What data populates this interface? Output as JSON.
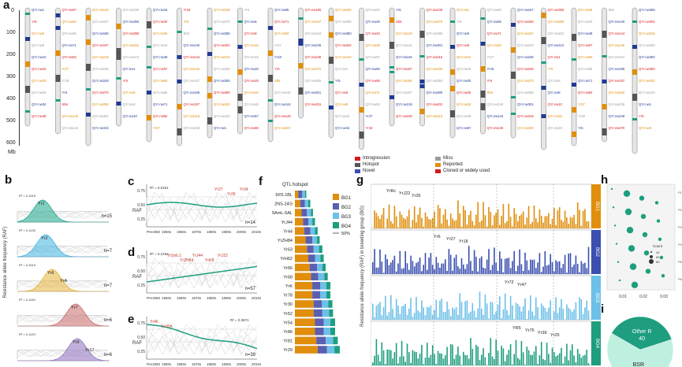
{
  "panel_labels": [
    "a",
    "b",
    "c",
    "d",
    "e",
    "f",
    "g",
    "h",
    "i"
  ],
  "panel_a": {
    "y_axis_ticks": [
      "0",
      "100",
      "200",
      "300",
      "400",
      "500",
      "600"
    ],
    "y_axis_unit": "Mb",
    "legend": [
      {
        "label": "Introgression",
        "color": "#d7191c"
      },
      {
        "label": "Hotspot",
        "color": "#555555"
      },
      {
        "label": "Novel",
        "color": "#3a4fb0"
      },
      {
        "label": "Miss",
        "color": "#9b9b9b"
      },
      {
        "label": "Reported",
        "color": "#e08e0b"
      },
      {
        "label": "Cloned or widely used",
        "color": "#d7191c"
      }
    ],
    "sample_labels": [
      "QYr.nw1",
      "Yr5",
      "QYr.nw6",
      "QYr.nw8",
      "QYr.nw10",
      "QYr.nw15",
      "QYr.nw20",
      "QYr.nw26",
      "QYr.nw34",
      "QYr.nw48",
      "QYr.nw57",
      "QYr.nw60",
      "QYr.nw65",
      "QYr.nw71",
      "QYr.nw82",
      "Yr27",
      "Yr18",
      "Yr6",
      "Sb6",
      "QYr.nw140",
      "QYr.nw144",
      "QYr.nw145",
      "QYr.nw157",
      "QYr.nw186",
      "QYr.nw197",
      "QYr.nw218",
      "QYr.nw236",
      "QYr.nw248",
      "QYr.nw270",
      "QYr.nw285",
      "QYr.nw301",
      "QYr.nw315",
      "QYr.nw330",
      "QYr.nw350",
      "QYr.nw380",
      "QYr.nw402",
      "QYr.nw410"
    ]
  },
  "panel_b": {
    "ylabel": "Resistance allele frequency (RAF)",
    "rows": [
      {
        "gene": "Yr1",
        "r2": "R² = 0.1615",
        "n": "n=15",
        "color": "#1aa58a"
      },
      {
        "gene": "Yr2",
        "r2": "R² = 0.1420",
        "n": "n=7",
        "color": "#3fb2e0"
      },
      {
        "gene": "Yr6",
        "r2": "R² = 0.2613",
        "n": "n=7",
        "color": "#e6b23a",
        "extra": "YrA"
      },
      {
        "gene": "Yr7",
        "r2": "R² = 0.1149",
        "n": "n=6",
        "color": "#c96a6a"
      },
      {
        "gene": "Yr9",
        "r2": "R² = 0.1129",
        "n": "n=6",
        "color": "#8f6fc0",
        "extra": "Yr17"
      }
    ]
  },
  "panel_c": {
    "ylabel": "RAF",
    "r2": "R² = 0.0151",
    "n": "n=14",
    "yticks": [
      "0.25",
      "0.50",
      "0.75"
    ],
    "xticks": [
      "Pre1950",
      "1950s",
      "1960s",
      "1970s",
      "1980s",
      "1990s",
      "2000s",
      "2010s"
    ],
    "genes": [
      "Yr27",
      "Yr26",
      "Yr34"
    ]
  },
  "panel_d": {
    "ylabel": "RAF",
    "r2": "R² = 0.2192",
    "n": "n=57",
    "yticks": [
      "0.25",
      "0.50",
      "0.75"
    ],
    "xticks": [
      "Pre1950",
      "1950s",
      "1960s",
      "1970s",
      "1980s",
      "1990s",
      "2000s",
      "2010s"
    ],
    "genes": [
      "YrSnb.1",
      "YrZH84",
      "YrJ44",
      "YrKB",
      "YrJ22"
    ]
  },
  "panel_e": {
    "ylabel": "RAF",
    "r2": "R² = 0.3671",
    "n": "n=39",
    "yticks": [
      "0.25",
      "0.50",
      "0.75"
    ],
    "xticks": [
      "Pre1950",
      "1950s",
      "1960s",
      "1970s",
      "1980s",
      "1990s",
      "2000s",
      "2010s"
    ],
    "genes": [
      "Yr46",
      "Yr1HA"
    ]
  },
  "chart_data": [
    {
      "type": "bar",
      "panel": "f",
      "title": "QTL hotspot",
      "categories": [
        "1RS.1BL",
        "2NS-2AS",
        "5AmL-5AL",
        "YrJ44",
        "Yr44",
        "YrZH84",
        "Yr63",
        "YrH62",
        "Yr66",
        "Yr68",
        "YrK",
        "Yr78",
        "Yr30",
        "Yr52",
        "Yr54",
        "Yr86",
        "Yr81",
        "Yr29"
      ],
      "series": [
        {
          "name": "BG1",
          "color": "#e08e0b",
          "values": [
            5,
            8,
            10,
            12,
            14,
            16,
            18,
            20,
            22,
            24,
            26,
            26,
            28,
            28,
            30,
            30,
            32,
            34
          ]
        },
        {
          "name": "BG2",
          "color": "#5b5fb0",
          "values": [
            6,
            7,
            8,
            8,
            9,
            10,
            10,
            10,
            11,
            11,
            12,
            12,
            12,
            13,
            13,
            13,
            14,
            14
          ]
        },
        {
          "name": "BG3",
          "color": "#6dc0e8",
          "values": [
            4,
            5,
            6,
            6,
            7,
            7,
            8,
            8,
            8,
            9,
            9,
            9,
            10,
            10,
            10,
            10,
            11,
            11
          ]
        },
        {
          "name": "BG4",
          "color": "#1e9e7f",
          "values": [
            2,
            3,
            3,
            4,
            4,
            4,
            5,
            5,
            5,
            5,
            6,
            6,
            6,
            6,
            7,
            7,
            7,
            8
          ]
        }
      ],
      "scale_label": "50%"
    },
    {
      "type": "bar",
      "panel": "g",
      "ylabel": "Resistance allele frequency (RAF) in breeding group (BG)",
      "groups": [
        {
          "name": "BG1",
          "color": "#e08e0b",
          "genes": [
            "YrRc",
            "YrJ22",
            "Yr26"
          ]
        },
        {
          "name": "BG2",
          "color": "#3a4fb0",
          "genes": [
            "Yr6",
            "Yr27",
            "Yr18"
          ]
        },
        {
          "name": "BG3",
          "color": "#6dc0e8",
          "genes": [
            "Yr72",
            "Yr47"
          ]
        },
        {
          "name": "BG4",
          "color": "#1e9e7f",
          "genes": [
            "YR5",
            "Yr75",
            "Yr39",
            "Yr25"
          ]
        }
      ]
    },
    {
      "type": "scatter",
      "panel": "h",
      "xticks": [
        "0.01",
        "0.02",
        "0.03"
      ],
      "legend_title": "Count",
      "legend_counts": [
        "40",
        "60",
        "80"
      ],
      "rows": [
        "P1",
        "P2",
        "P3",
        "P4",
        "P5",
        "P6"
      ]
    },
    {
      "type": "pie",
      "panel": "i",
      "slices": [
        {
          "label": "BSR",
          "value": 69,
          "color": "#bff0df"
        },
        {
          "label": "Other R",
          "value": 40,
          "color": "#1e9e7f"
        }
      ]
    }
  ]
}
